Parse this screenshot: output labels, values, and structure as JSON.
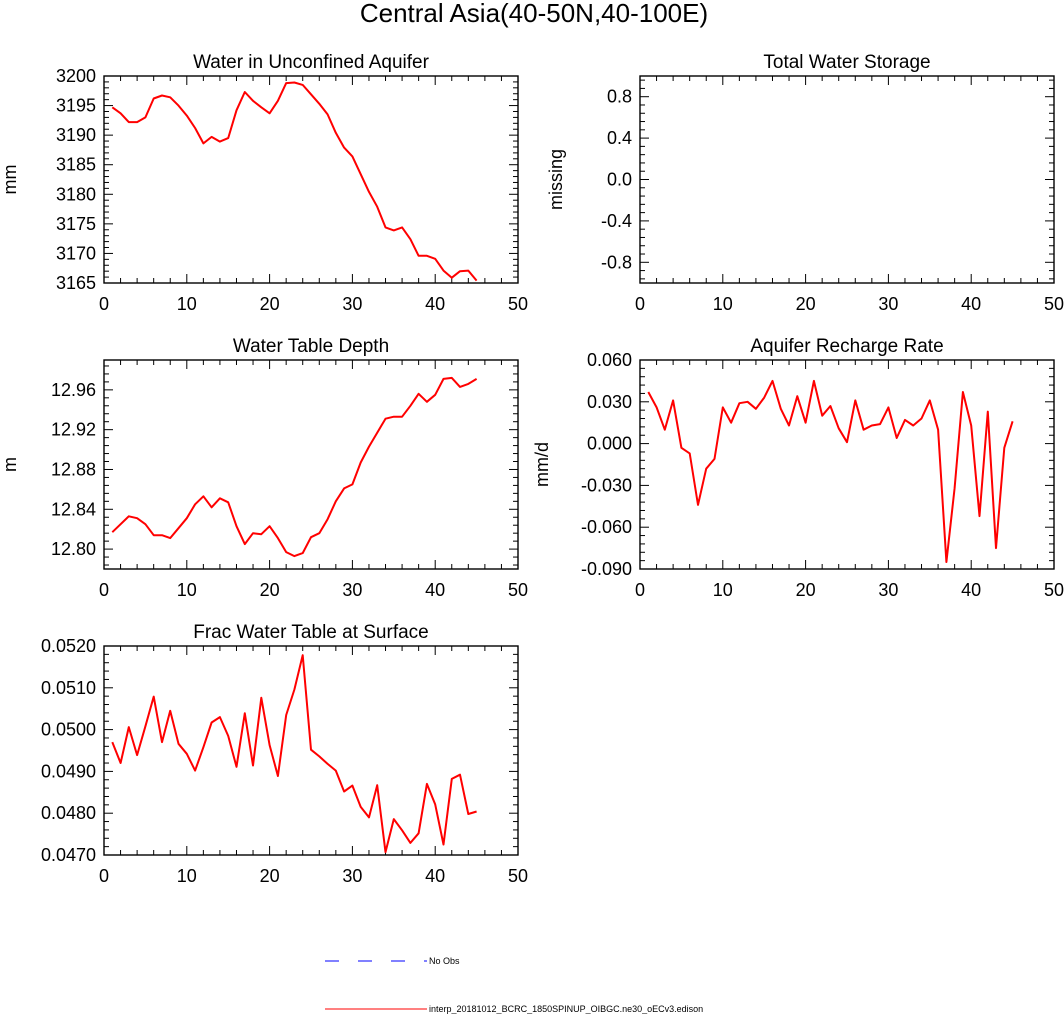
{
  "figure": {
    "title": "Central Asia(40-50N,40-100E)"
  },
  "legend": {
    "entries": [
      {
        "label": "No Obs",
        "color": "#0000ff",
        "style": "dashed"
      },
      {
        "label": "interp_20181012_BCRC_1850SPINUP_OIBGC.ne30_oECv3.edison",
        "color": "#ff0000",
        "style": "solid"
      }
    ]
  },
  "chart_data": [
    {
      "type": "line",
      "title": "Water in Unconfined Aquifer",
      "xlabel": "",
      "ylabel": "mm",
      "xlim": [
        0,
        50
      ],
      "ylim": [
        3165,
        3200
      ],
      "xticks": [
        "0",
        "10",
        "20",
        "30",
        "40",
        "50"
      ],
      "yticks": [
        "3165",
        "3170",
        "3175",
        "3180",
        "3185",
        "3190",
        "3195",
        "3200"
      ],
      "series": [
        {
          "color": "#ff0000",
          "x": [
            1,
            2,
            3,
            4,
            5,
            6,
            7,
            8,
            9,
            10,
            11,
            12,
            13,
            14,
            15,
            16,
            17,
            18,
            19,
            20,
            21,
            22,
            23,
            24,
            25,
            26,
            27,
            28,
            29,
            30,
            31,
            32,
            33,
            34,
            35,
            36,
            37,
            38,
            39,
            40,
            41,
            42,
            43,
            44,
            45
          ],
          "y": [
            3194.7,
            3193.7,
            3192.2,
            3192.2,
            3193.0,
            3196.2,
            3196.7,
            3196.4,
            3195.0,
            3193.3,
            3191.2,
            3188.6,
            3189.7,
            3188.9,
            3189.5,
            3194.2,
            3197.3,
            3195.8,
            3194.7,
            3193.7,
            3195.8,
            3198.8,
            3198.9,
            3198.5,
            3196.9,
            3195.3,
            3193.5,
            3190.4,
            3187.9,
            3186.4,
            3183.4,
            3180.4,
            3177.9,
            3174.4,
            3173.9,
            3174.4,
            3172.4,
            3169.6,
            3169.6,
            3169.1,
            3167.1,
            3165.9,
            3167.0,
            3167.1,
            3165.4
          ]
        }
      ]
    },
    {
      "type": "line",
      "title": "Total Water Storage",
      "xlabel": "",
      "ylabel": "missing",
      "xlim": [
        0,
        50
      ],
      "ylim": [
        -1,
        1
      ],
      "xticks": [
        "0",
        "10",
        "20",
        "30",
        "40",
        "50"
      ],
      "yticks": [
        "-0.8",
        "-0.4",
        "0.0",
        "0.4",
        "0.8"
      ],
      "series": []
    },
    {
      "type": "line",
      "title": "Water Table Depth",
      "xlabel": "",
      "ylabel": "m",
      "xlim": [
        0,
        50
      ],
      "ylim": [
        12.78,
        12.99
      ],
      "xticks": [
        "0",
        "10",
        "20",
        "30",
        "40",
        "50"
      ],
      "yticks": [
        "12.80",
        "12.84",
        "12.88",
        "12.92",
        "12.96"
      ],
      "series": [
        {
          "color": "#ff0000",
          "x": [
            1,
            2,
            3,
            4,
            5,
            6,
            7,
            8,
            9,
            10,
            11,
            12,
            13,
            14,
            15,
            16,
            17,
            18,
            19,
            20,
            21,
            22,
            23,
            24,
            25,
            26,
            27,
            28,
            29,
            30,
            31,
            32,
            33,
            34,
            35,
            36,
            37,
            38,
            39,
            40,
            41,
            42,
            43,
            44,
            45
          ],
          "y": [
            12.817,
            12.825,
            12.833,
            12.831,
            12.825,
            12.814,
            12.814,
            12.811,
            12.821,
            12.831,
            12.845,
            12.853,
            12.842,
            12.851,
            12.847,
            12.823,
            12.805,
            12.816,
            12.815,
            12.823,
            12.811,
            12.797,
            12.793,
            12.796,
            12.812,
            12.816,
            12.83,
            12.848,
            12.861,
            12.865,
            12.887,
            12.903,
            12.917,
            12.931,
            12.933,
            12.933,
            12.944,
            12.956,
            12.948,
            12.955,
            12.971,
            12.972,
            12.963,
            12.966,
            12.971
          ]
        }
      ]
    },
    {
      "type": "line",
      "title": "Aquifer Recharge Rate",
      "xlabel": "",
      "ylabel": "mm/d",
      "xlim": [
        0,
        50
      ],
      "ylim": [
        -0.09,
        0.06
      ],
      "xticks": [
        "0",
        "10",
        "20",
        "30",
        "40",
        "50"
      ],
      "yticks": [
        "-0.090",
        "-0.060",
        "-0.030",
        "0.000",
        "0.030",
        "0.060"
      ],
      "series": [
        {
          "color": "#ff0000",
          "x": [
            1,
            2,
            3,
            4,
            5,
            6,
            7,
            8,
            9,
            10,
            11,
            12,
            13,
            14,
            15,
            16,
            17,
            18,
            19,
            20,
            21,
            22,
            23,
            24,
            25,
            26,
            27,
            28,
            29,
            30,
            31,
            32,
            33,
            34,
            35,
            36,
            37,
            38,
            39,
            40,
            41,
            42,
            43,
            44,
            45
          ],
          "y": [
            0.037,
            0.026,
            0.01,
            0.031,
            -0.003,
            -0.007,
            -0.044,
            -0.018,
            -0.011,
            0.026,
            0.015,
            0.029,
            0.03,
            0.025,
            0.033,
            0.045,
            0.025,
            0.013,
            0.034,
            0.015,
            0.045,
            0.02,
            0.027,
            0.011,
            0.001,
            0.031,
            0.01,
            0.013,
            0.014,
            0.026,
            0.004,
            0.017,
            0.013,
            0.018,
            0.031,
            0.01,
            -0.085,
            -0.032,
            0.037,
            0.013,
            -0.052,
            0.023,
            -0.075,
            -0.003,
            0.016
          ]
        }
      ]
    },
    {
      "type": "line",
      "title": "Frac Water Table at Surface",
      "xlabel": "",
      "ylabel": "",
      "xlim": [
        0,
        50
      ],
      "ylim": [
        0.047,
        0.052
      ],
      "xticks": [
        "0",
        "10",
        "20",
        "30",
        "40",
        "50"
      ],
      "yticks": [
        "0.0470",
        "0.0480",
        "0.0490",
        "0.0500",
        "0.0510",
        "0.0520"
      ],
      "series": [
        {
          "color": "#ff0000",
          "x": [
            1,
            2,
            3,
            4,
            5,
            6,
            7,
            8,
            9,
            10,
            11,
            12,
            13,
            14,
            15,
            16,
            17,
            18,
            19,
            20,
            21,
            22,
            23,
            24,
            25,
            26,
            27,
            28,
            29,
            30,
            31,
            32,
            33,
            34,
            35,
            36,
            37,
            38,
            39,
            40,
            41,
            42,
            43,
            44,
            45
          ],
          "y": [
            0.0497,
            0.0492,
            0.05006,
            0.04939,
            0.05008,
            0.05079,
            0.0497,
            0.05045,
            0.04966,
            0.04942,
            0.04902,
            0.04958,
            0.05017,
            0.0503,
            0.04985,
            0.04911,
            0.05039,
            0.04914,
            0.05076,
            0.04963,
            0.04889,
            0.05035,
            0.05096,
            0.05178,
            0.04952,
            0.04936,
            0.04918,
            0.04902,
            0.04852,
            0.04866,
            0.04815,
            0.0479,
            0.04867,
            0.04707,
            0.04786,
            0.04759,
            0.04729,
            0.04752,
            0.0487,
            0.04821,
            0.04725,
            0.04882,
            0.04892,
            0.04798,
            0.04804
          ]
        }
      ]
    }
  ]
}
